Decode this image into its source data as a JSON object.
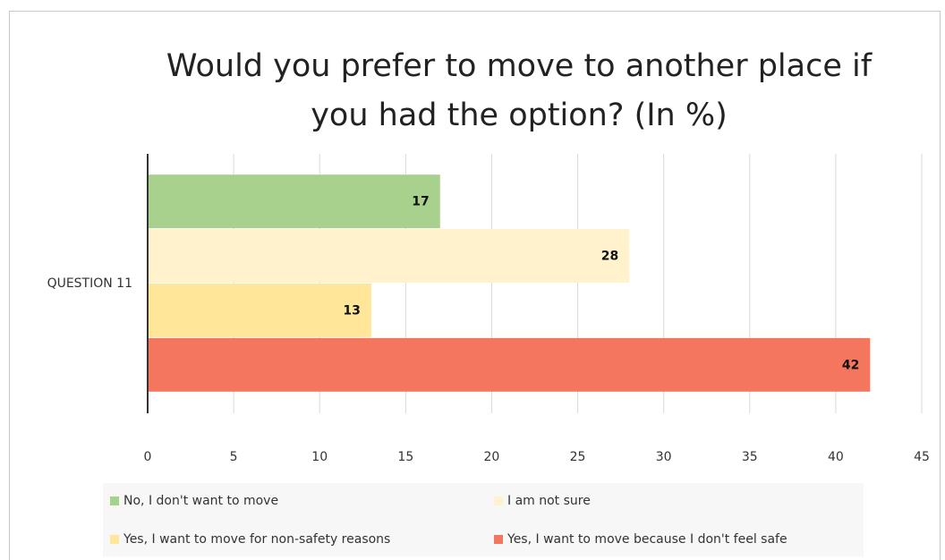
{
  "chart_data": {
    "type": "bar",
    "orientation": "horizontal",
    "title": "Would you prefer to move to another place if you had the option? (In %)",
    "categories": [
      "QUESTION 11"
    ],
    "series": [
      {
        "name": "No, I don't want to move",
        "color": "#a9d18e",
        "values": [
          17
        ]
      },
      {
        "name": "I am not sure",
        "color": "#fff2cc",
        "values": [
          28
        ]
      },
      {
        "name": "Yes, I want to move for non-safety reasons",
        "color": "#ffe699",
        "values": [
          13
        ]
      },
      {
        "name": "Yes, I want to move because I don't feel safe",
        "color": "#f4765f",
        "values": [
          42
        ]
      }
    ],
    "xlim": [
      0,
      45
    ],
    "xticks": [
      0,
      5,
      10,
      15,
      20,
      25,
      30,
      35,
      40,
      45
    ],
    "grid": true,
    "legend": "bottom",
    "data_labels": true
  }
}
